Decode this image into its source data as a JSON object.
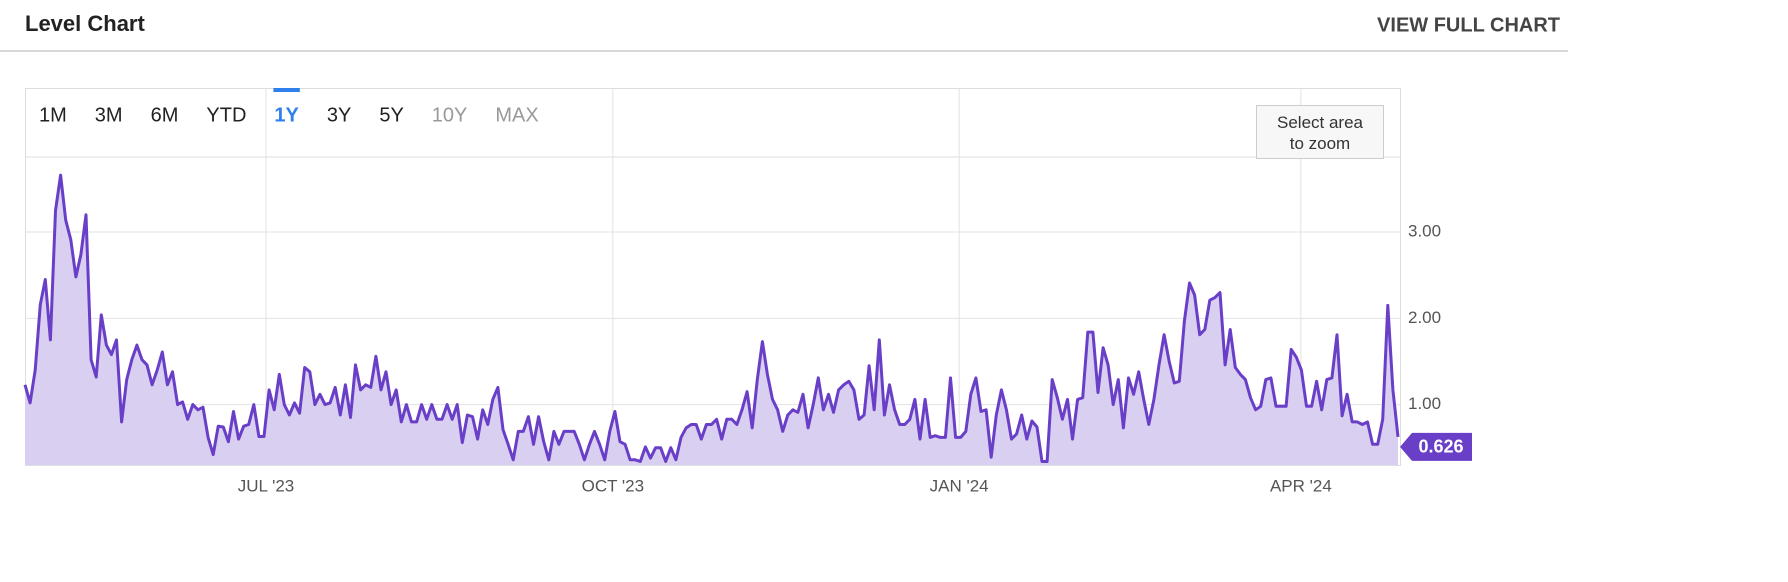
{
  "header": {
    "title": "Level Chart",
    "action": "VIEW FULL CHART"
  },
  "range_buttons": [
    {
      "label": "1M",
      "state": "normal"
    },
    {
      "label": "3M",
      "state": "normal"
    },
    {
      "label": "6M",
      "state": "normal"
    },
    {
      "label": "YTD",
      "state": "normal"
    },
    {
      "label": "1Y",
      "state": "selected"
    },
    {
      "label": "3Y",
      "state": "normal"
    },
    {
      "label": "5Y",
      "state": "normal"
    },
    {
      "label": "10Y",
      "state": "disabled"
    },
    {
      "label": "MAX",
      "state": "disabled"
    }
  ],
  "zoom_hint": "Select area to zoom",
  "chart_data": {
    "type": "area",
    "color": "#6a3fc8",
    "area_color": "#d9cff0",
    "grid": true,
    "xlim": [
      0,
      270
    ],
    "xticks": [
      {
        "value": 47.4,
        "label": "JUL '23"
      },
      {
        "value": 115.6,
        "label": "OCT '23"
      },
      {
        "value": 183.7,
        "label": "JAN '24"
      },
      {
        "value": 250.9,
        "label": "APR '24"
      }
    ],
    "ylim": [
      0.3,
      3.87
    ],
    "yticks": [
      {
        "value": 1,
        "label": "1.00"
      },
      {
        "value": 2,
        "label": "2.00"
      },
      {
        "value": 3,
        "label": "3.00"
      }
    ],
    "values": [
      1.23,
      1.02,
      1.4,
      2.16,
      2.45,
      1.75,
      3.25,
      3.66,
      3.14,
      2.91,
      2.48,
      2.74,
      3.2,
      1.52,
      1.32,
      2.04,
      1.69,
      1.58,
      1.75,
      0.8,
      1.29,
      1.52,
      1.69,
      1.52,
      1.46,
      1.23,
      1.4,
      1.61,
      1.23,
      1.38,
      1.0,
      1.03,
      0.83,
      1.0,
      0.94,
      0.97,
      0.62,
      0.42,
      0.75,
      0.74,
      0.57,
      0.92,
      0.6,
      0.75,
      0.77,
      1.0,
      0.63,
      0.63,
      1.17,
      0.94,
      1.35,
      1.0,
      0.88,
      1.02,
      0.9,
      1.43,
      1.38,
      1.0,
      1.12,
      1.0,
      1.02,
      1.2,
      0.88,
      1.23,
      0.85,
      1.46,
      1.17,
      1.23,
      1.2,
      1.56,
      1.17,
      1.38,
      1.0,
      1.17,
      0.8,
      1.0,
      0.8,
      0.8,
      1.0,
      0.83,
      1.0,
      0.83,
      0.83,
      1.0,
      0.83,
      1.0,
      0.56,
      0.88,
      0.86,
      0.6,
      0.94,
      0.77,
      1.06,
      1.2,
      0.71,
      0.54,
      0.36,
      0.69,
      0.69,
      0.86,
      0.54,
      0.86,
      0.57,
      0.36,
      0.69,
      0.54,
      0.69,
      0.69,
      0.69,
      0.54,
      0.36,
      0.54,
      0.69,
      0.54,
      0.36,
      0.69,
      0.92,
      0.57,
      0.54,
      0.36,
      0.36,
      0.34,
      0.51,
      0.38,
      0.5,
      0.5,
      0.34,
      0.5,
      0.36,
      0.62,
      0.73,
      0.77,
      0.77,
      0.6,
      0.77,
      0.77,
      0.83,
      0.6,
      0.83,
      0.83,
      0.77,
      0.94,
      1.15,
      0.73,
      1.29,
      1.73,
      1.35,
      1.06,
      0.94,
      0.69,
      0.88,
      0.94,
      0.91,
      1.12,
      0.73,
      1.0,
      1.31,
      0.94,
      1.12,
      0.91,
      1.17,
      1.23,
      1.27,
      1.17,
      0.83,
      0.88,
      1.45,
      0.94,
      1.75,
      0.88,
      1.23,
      0.94,
      0.77,
      0.77,
      0.83,
      1.06,
      0.6,
      1.06,
      0.62,
      0.64,
      0.62,
      0.62,
      1.31,
      0.62,
      0.62,
      0.69,
      1.12,
      1.31,
      0.92,
      0.94,
      0.39,
      0.88,
      1.17,
      0.94,
      0.6,
      0.66,
      0.88,
      0.6,
      0.81,
      0.74,
      0.34,
      0.34,
      1.29,
      1.08,
      0.83,
      1.06,
      0.6,
      1.06,
      1.08,
      1.84,
      1.84,
      1.14,
      1.66,
      1.46,
      1.0,
      1.29,
      0.73,
      1.31,
      1.12,
      1.38,
      1.06,
      0.77,
      1.06,
      1.46,
      1.81,
      1.5,
      1.25,
      1.27,
      1.97,
      2.41,
      2.27,
      1.81,
      1.87,
      2.21,
      2.24,
      2.3,
      1.46,
      1.87,
      1.43,
      1.35,
      1.29,
      1.08,
      0.94,
      0.98,
      1.29,
      1.31,
      0.98,
      0.98,
      0.98,
      1.64,
      1.55,
      1.4,
      0.98,
      0.98,
      1.27,
      0.94,
      1.29,
      1.31,
      1.81,
      0.87,
      1.12,
      0.8,
      0.8,
      0.77,
      0.8,
      0.54,
      0.54,
      0.83,
      2.15,
      1.17,
      0.626
    ]
  }
}
